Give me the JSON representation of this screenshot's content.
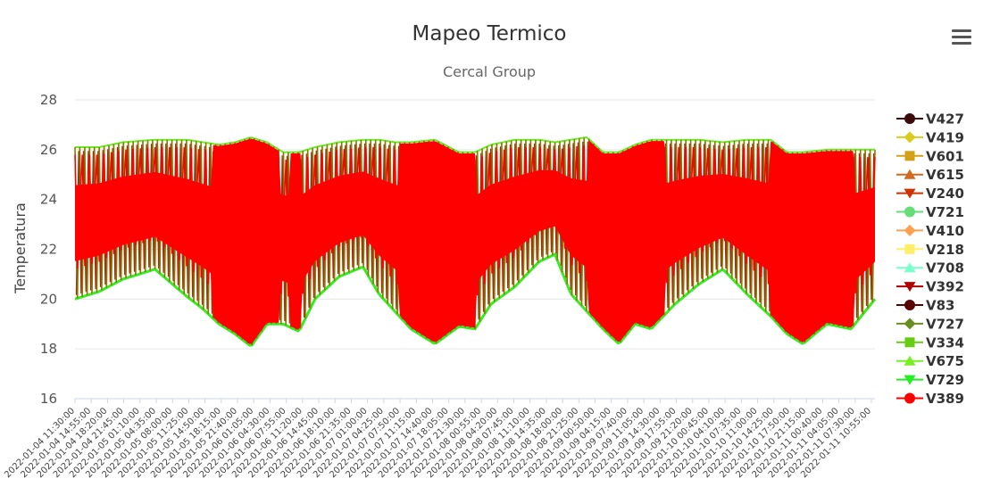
{
  "menu": {
    "icon": "hamburger-menu-icon"
  },
  "chart_data": {
    "type": "line",
    "title": "Mapeo Termico",
    "subtitle": "Cercal Group",
    "ylabel": "Temperatura",
    "xlabel": "",
    "ylim": [
      16,
      28
    ],
    "yticks": [
      16,
      18,
      20,
      22,
      24,
      26,
      28
    ],
    "grid": true,
    "legend_position": "right",
    "x_tick_labels": [
      "2022-01-04 11:30:00",
      "2022-01-04 14:55:00",
      "2022-01-04 18:20:00",
      "2022-01-04 21:45:00",
      "2022-01-05 01:10:00",
      "2022-01-05 04:35:00",
      "2022-01-05 08:00:00",
      "2022-01-05 11:25:00",
      "2022-01-05 14:50:00",
      "2022-01-05 18:15:00",
      "2022-01-05 21:40:00",
      "2022-01-06 01:05:00",
      "2022-01-06 04:30:00",
      "2022-01-06 07:55:00",
      "2022-01-06 11:20:00",
      "2022-01-06 14:45:00",
      "2022-01-06 18:10:00",
      "2022-01-06 21:35:00",
      "2022-01-07 01:00:00",
      "2022-01-07 04:25:00",
      "2022-01-07 07:50:00",
      "2022-01-07 11:15:00",
      "2022-01-07 14:40:00",
      "2022-01-07 18:05:00",
      "2022-01-07 21:30:00",
      "2022-01-08 00:55:00",
      "2022-01-08 04:20:00",
      "2022-01-08 07:45:00",
      "2022-01-08 11:10:00",
      "2022-01-08 14:35:00",
      "2022-01-08 18:00:00",
      "2022-01-08 21:25:00",
      "2022-01-09 00:50:00",
      "2022-01-09 04:15:00",
      "2022-01-09 07:40:00",
      "2022-01-09 11:05:00",
      "2022-01-09 14:30:00",
      "2022-01-09 17:55:00",
      "2022-01-09 21:20:00",
      "2022-01-10 00:45:00",
      "2022-01-10 04:10:00",
      "2022-01-10 07:35:00",
      "2022-01-10 11:00:00",
      "2022-01-10 14:25:00",
      "2022-01-10 17:50:00",
      "2022-01-10 21:15:00",
      "2022-01-11 00:40:00",
      "2022-01-11 04:05:00",
      "2022-01-11 07:30:00",
      "2022-01-11 10:55:00"
    ],
    "series": [
      {
        "name": "V427",
        "color": "#3b0a0a",
        "marker": "circle"
      },
      {
        "name": "V419",
        "color": "#d8cc1f",
        "marker": "diamond"
      },
      {
        "name": "V601",
        "color": "#d4a017",
        "marker": "square"
      },
      {
        "name": "V615",
        "color": "#d2691e",
        "marker": "triangle"
      },
      {
        "name": "V240",
        "color": "#cc3300",
        "marker": "triangle-down"
      },
      {
        "name": "V721",
        "color": "#66dd77",
        "marker": "circle"
      },
      {
        "name": "V410",
        "color": "#ffa050",
        "marker": "diamond"
      },
      {
        "name": "V218",
        "color": "#ffee66",
        "marker": "square"
      },
      {
        "name": "V708",
        "color": "#77ffcc",
        "marker": "triangle"
      },
      {
        "name": "V392",
        "color": "#b00000",
        "marker": "triangle-down"
      },
      {
        "name": "V83",
        "color": "#5a0000",
        "marker": "circle"
      },
      {
        "name": "V727",
        "color": "#6b8e23",
        "marker": "diamond"
      },
      {
        "name": "V334",
        "color": "#66cc11",
        "marker": "square"
      },
      {
        "name": "V675",
        "color": "#77ee22",
        "marker": "triangle"
      },
      {
        "name": "V729",
        "color": "#22ee22",
        "marker": "triangle-down"
      },
      {
        "name": "V389",
        "color": "#ff0000",
        "marker": "circle"
      }
    ],
    "envelope": {
      "x_positions": [
        0,
        0.03,
        0.06,
        0.1,
        0.14,
        0.16,
        0.18,
        0.2,
        0.22,
        0.24,
        0.26,
        0.28,
        0.3,
        0.33,
        0.36,
        0.38,
        0.4,
        0.42,
        0.45,
        0.48,
        0.5,
        0.52,
        0.55,
        0.58,
        0.6,
        0.62,
        0.64,
        0.66,
        0.68,
        0.7,
        0.72,
        0.75,
        0.78,
        0.81,
        0.84,
        0.87,
        0.89,
        0.91,
        0.94,
        0.97,
        1.0
      ],
      "upper": [
        26.1,
        26.1,
        26.3,
        26.4,
        26.4,
        26.3,
        26.2,
        26.3,
        26.5,
        26.3,
        25.9,
        25.9,
        26.1,
        26.3,
        26.4,
        26.4,
        26.3,
        26.3,
        26.4,
        25.9,
        25.9,
        26.2,
        26.4,
        26.4,
        26.3,
        26.4,
        26.5,
        25.9,
        25.9,
        26.2,
        26.4,
        26.4,
        26.4,
        26.3,
        26.4,
        26.4,
        25.9,
        25.9,
        26.0,
        26.0,
        26.0
      ],
      "lower": [
        20.0,
        20.3,
        20.8,
        21.2,
        20.1,
        19.6,
        19.0,
        18.6,
        18.1,
        19.0,
        19.0,
        18.7,
        20.0,
        20.9,
        21.3,
        20.2,
        19.5,
        18.8,
        18.2,
        18.9,
        18.8,
        19.8,
        20.5,
        21.5,
        21.8,
        20.2,
        19.5,
        18.8,
        18.2,
        19.0,
        18.8,
        19.8,
        20.6,
        21.2,
        20.2,
        19.3,
        18.6,
        18.2,
        19.0,
        18.8,
        20.0
      ]
    }
  }
}
